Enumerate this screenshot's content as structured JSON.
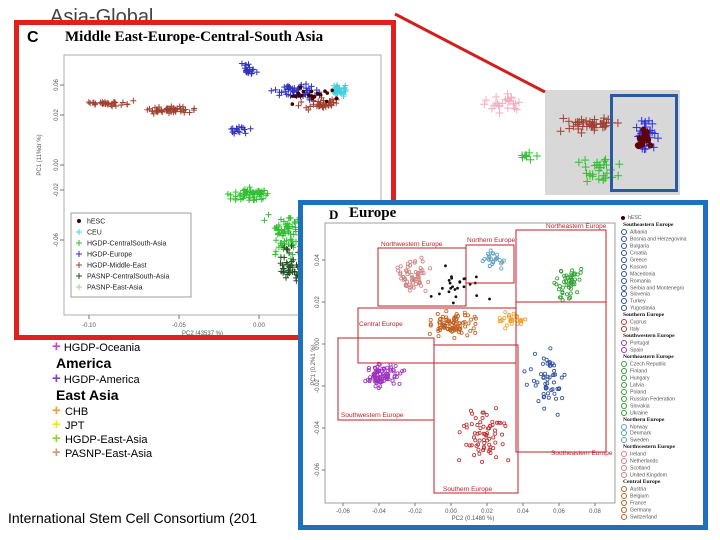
{
  "slide": {
    "top_title": "Asia-Global",
    "caption": "International Stem Cell Consortium (201"
  },
  "colors": {
    "panel_c_border": "#e0201e",
    "panel_d_border": "#1f6fbf",
    "connector": "#d0201e",
    "zoom_box": "#2c5aa0",
    "region_box": "#c0202a"
  },
  "background_legend": {
    "row1": {
      "label": "HGDP-Oceania",
      "color": "#d040d0"
    },
    "group1": {
      "label": "America"
    },
    "row2": {
      "label": "HGDP-America",
      "color": "#8a3ad0"
    },
    "group2": {
      "label": "East Asia"
    },
    "rows": [
      {
        "label": "CHB",
        "color": "#f0a030"
      },
      {
        "label": "JPT",
        "color": "#f0e020"
      },
      {
        "label": "HGDP-East-Asia",
        "color": "#90d040"
      },
      {
        "label": "PASNP-East-Asia",
        "color": "#d09a70"
      }
    ]
  },
  "chart_data": [
    {
      "panel": "C",
      "type": "scatter",
      "title": "Middle East-Europe-Central-South Asia",
      "xlabel": "PC2 (43537 %)",
      "ylabel": "PC1 (11%dr %)",
      "x_ticks": [
        "-0.10",
        "-0.05",
        "0.00"
      ],
      "y_ticks": [
        "-0.06",
        "-0.02",
        "0.00",
        "0.02",
        "0.06"
      ],
      "legend_placement": "bottom-left",
      "legend": [
        {
          "label": "hESC",
          "color": "#400000",
          "marker": "dot"
        },
        {
          "label": "CEU",
          "color": "#40d0e0",
          "marker": "plus"
        },
        {
          "label": "HGDP-CentralSouth-Asia",
          "color": "#30c030",
          "marker": "plus"
        },
        {
          "label": "HGDP-Europe",
          "color": "#3030c0",
          "marker": "plus"
        },
        {
          "label": "HGDP-Middle-East",
          "color": "#a04030",
          "marker": "plus"
        },
        {
          "label": "PASNP-CentralSouth-Asia",
          "color": "#205020",
          "marker": "plus"
        },
        {
          "label": "PASNP-East-Asia",
          "color": "#a0d080",
          "marker": "plus"
        }
      ],
      "series_colors": {
        "hgdp_europe": "#3030c0",
        "middle_east": "#a04030",
        "central_south": "#30c030",
        "pasnp_central_south": "#205020",
        "hesc": "#400000",
        "ceu": "#40d0e0"
      }
    },
    {
      "panel": "D",
      "type": "scatter",
      "title": "Europe",
      "xlabel": "PC2 (0.1480 %)",
      "ylabel": "PC1 (0.2%1 %)",
      "x_ticks": [
        "-0.06",
        "-0.04",
        "-0.02",
        "0.00",
        "0.02",
        "0.04",
        "0.06",
        "0.08"
      ],
      "y_ticks": [
        "0.04",
        "0.02",
        "0.00",
        "-0.02",
        "-0.04",
        "-0.06"
      ],
      "regions": [
        "Northwestern Europe",
        "Northern Europe",
        "Northeastern Europe",
        "Central Europe",
        "Southwestern Europe",
        "Southeastern Europe",
        "Southern Europe"
      ],
      "legend_placement": "right",
      "legend": [
        {
          "label": "hESC",
          "color": "#400000",
          "header": false
        },
        {
          "label": "Southeastern Europe",
          "header": true
        },
        {
          "label": "Albania",
          "color": "#3050a0",
          "header": false
        },
        {
          "label": "Bosnia and Herzegovina",
          "color": "#3050a0",
          "header": false
        },
        {
          "label": "Bulgaria",
          "color": "#3050a0",
          "header": false
        },
        {
          "label": "Croatia",
          "color": "#3050a0",
          "header": false
        },
        {
          "label": "Greece",
          "color": "#3050a0",
          "header": false
        },
        {
          "label": "Kosovo",
          "color": "#3050a0",
          "header": false
        },
        {
          "label": "Macedonia",
          "color": "#3050a0",
          "header": false
        },
        {
          "label": "Romania",
          "color": "#3050a0",
          "header": false
        },
        {
          "label": "Serbia and Montenegro",
          "color": "#3050a0",
          "header": false
        },
        {
          "label": "Slovenia",
          "color": "#3050a0",
          "header": false
        },
        {
          "label": "Turkey",
          "color": "#3050a0",
          "header": false
        },
        {
          "label": "Yugoslavia",
          "color": "#3050a0",
          "header": false
        },
        {
          "label": "Southern Europe",
          "header": true
        },
        {
          "label": "Cyprus",
          "color": "#c03030",
          "header": false
        },
        {
          "label": "Italy",
          "color": "#c03030",
          "header": false
        },
        {
          "label": "Southwestern Europe",
          "header": true
        },
        {
          "label": "Portugal",
          "color": "#a030c0",
          "header": false
        },
        {
          "label": "Spain",
          "color": "#a030c0",
          "header": false
        },
        {
          "label": "Northeastern Europe",
          "header": true
        },
        {
          "label": "Czech Republic",
          "color": "#30a030",
          "header": false
        },
        {
          "label": "Finland",
          "color": "#30a030",
          "header": false
        },
        {
          "label": "Hungary",
          "color": "#30a030",
          "header": false
        },
        {
          "label": "Latvia",
          "color": "#30a030",
          "header": false
        },
        {
          "label": "Poland",
          "color": "#30a030",
          "header": false
        },
        {
          "label": "Russian Federation",
          "color": "#30a030",
          "header": false
        },
        {
          "label": "Slovakia",
          "color": "#30a030",
          "header": false
        },
        {
          "label": "Ukraine",
          "color": "#30a030",
          "header": false
        },
        {
          "label": "Northern Europe",
          "header": true
        },
        {
          "label": "Norway",
          "color": "#60a0c0",
          "header": false
        },
        {
          "label": "Denmark",
          "color": "#60a0c0",
          "header": false
        },
        {
          "label": "Sweden",
          "color": "#60a0c0",
          "header": false
        },
        {
          "label": "Northwestern Europe",
          "header": true
        },
        {
          "label": "Ireland",
          "color": "#d08080",
          "header": false
        },
        {
          "label": "Netherlands",
          "color": "#d08080",
          "header": false
        },
        {
          "label": "Scotland",
          "color": "#d08080",
          "header": false
        },
        {
          "label": "United Kingdom",
          "color": "#d08080",
          "header": false
        },
        {
          "label": "Central Europe",
          "header": true
        },
        {
          "label": "Austria",
          "color": "#c06020",
          "header": false
        },
        {
          "label": "Belgium",
          "color": "#c06020",
          "header": false
        },
        {
          "label": "France",
          "color": "#c06020",
          "header": false
        },
        {
          "label": "Germany",
          "color": "#c06020",
          "header": false
        },
        {
          "label": "Switzerland",
          "color": "#c06020",
          "header": false
        }
      ]
    }
  ]
}
